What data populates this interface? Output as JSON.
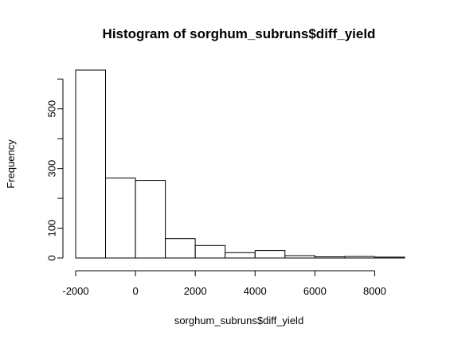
{
  "chart_data": {
    "type": "bar",
    "title": "Histogram of sorghum_subruns$diff_yield",
    "xlabel": "sorghum_subruns$diff_yield",
    "ylabel": "Frequency",
    "xlim": [
      -2000,
      9000
    ],
    "ylim": [
      0,
      630
    ],
    "bin_edges": [
      -2000,
      -1000,
      0,
      1000,
      2000,
      3000,
      4000,
      5000,
      6000,
      7000,
      8000,
      9000
    ],
    "values": [
      630,
      268,
      260,
      65,
      42,
      18,
      25,
      8,
      4,
      5,
      3
    ],
    "x_ticks": [
      -2000,
      0,
      2000,
      4000,
      6000,
      8000
    ],
    "x_tick_labels": [
      "-2000",
      "0",
      "2000",
      "4000",
      "6000",
      "8000"
    ],
    "y_ticks": [
      0,
      100,
      200,
      300,
      400,
      500,
      600
    ],
    "y_tick_labels": [
      "0",
      "100",
      "",
      "300",
      "",
      "500",
      ""
    ],
    "grid": false
  }
}
